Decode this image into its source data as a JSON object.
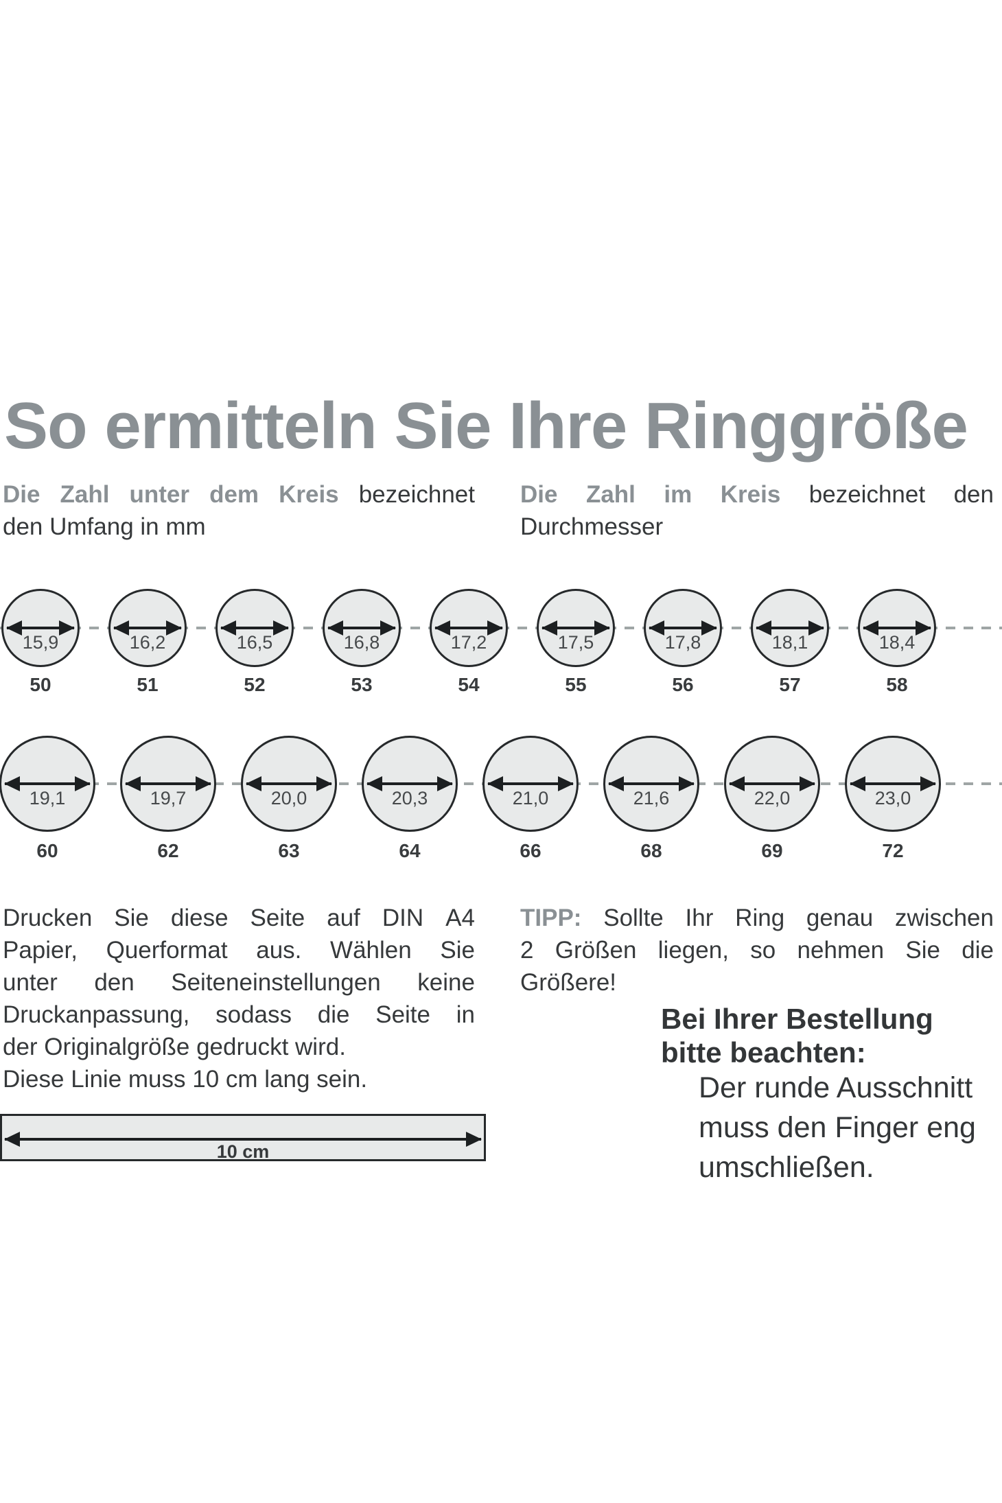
{
  "title": "So ermitteln Sie Ihre Ringgröße",
  "subtitle_left": {
    "line1": [
      {
        "t": "Die",
        "gray": true
      },
      {
        "t": "Zahl",
        "gray": true
      },
      {
        "t": "unter",
        "gray": true
      },
      {
        "t": "dem",
        "gray": true
      },
      {
        "t": "Kreis",
        "gray": true
      },
      {
        "t": "bezeichnet"
      }
    ],
    "line2": "den Umfang in mm"
  },
  "subtitle_right": {
    "line1": [
      {
        "t": "Die",
        "gray": true
      },
      {
        "t": "Zahl",
        "gray": true
      },
      {
        "t": "im",
        "gray": true
      },
      {
        "t": "Kreis",
        "gray": true
      },
      {
        "t": "bezeichnet"
      },
      {
        "t": "den"
      }
    ],
    "line2": "Durchmesser"
  },
  "row1": {
    "circles": [
      {
        "diameter_mm": "15,9",
        "size": "50"
      },
      {
        "diameter_mm": "16,2",
        "size": "51"
      },
      {
        "diameter_mm": "16,5",
        "size": "52"
      },
      {
        "diameter_mm": "16,8",
        "size": "53"
      },
      {
        "diameter_mm": "17,2",
        "size": "54"
      },
      {
        "diameter_mm": "17,5",
        "size": "55"
      },
      {
        "diameter_mm": "17,8",
        "size": "56"
      },
      {
        "diameter_mm": "18,1",
        "size": "57"
      },
      {
        "diameter_mm": "18,4",
        "size": "58"
      }
    ]
  },
  "row2": {
    "circles": [
      {
        "diameter_mm": "19,1",
        "size": "60"
      },
      {
        "diameter_mm": "19,7",
        "size": "62"
      },
      {
        "diameter_mm": "20,0",
        "size": "63"
      },
      {
        "diameter_mm": "20,3",
        "size": "64"
      },
      {
        "diameter_mm": "21,0",
        "size": "66"
      },
      {
        "diameter_mm": "21,6",
        "size": "68"
      },
      {
        "diameter_mm": "22,0",
        "size": "69"
      },
      {
        "diameter_mm": "23,0",
        "size": "72"
      }
    ]
  },
  "print_para": {
    "lines": [
      {
        "justify": true,
        "words": [
          {
            "t": "Drucken"
          },
          {
            "t": "Sie"
          },
          {
            "t": "diese"
          },
          {
            "t": "Seite"
          },
          {
            "t": "auf"
          },
          {
            "t": "DIN"
          },
          {
            "t": "A4"
          }
        ]
      },
      {
        "justify": true,
        "words": [
          {
            "t": "Papier,"
          },
          {
            "t": "Querformat"
          },
          {
            "t": "aus."
          },
          {
            "t": "Wählen"
          },
          {
            "t": "Sie"
          }
        ]
      },
      {
        "justify": true,
        "words": [
          {
            "t": "unter"
          },
          {
            "t": "den"
          },
          {
            "t": "Seiteneinstellungen"
          },
          {
            "t": "keine"
          }
        ]
      },
      {
        "justify": true,
        "words": [
          {
            "t": "Druckanpassung,"
          },
          {
            "t": "sodass"
          },
          {
            "t": "die"
          },
          {
            "t": "Seite"
          },
          {
            "t": "in"
          }
        ]
      },
      {
        "justify": false,
        "text": "der Originalgröße gedruckt wird."
      },
      {
        "justify": false,
        "text": "Diese Linie muss 10 cm lang sein."
      }
    ]
  },
  "tip_para": {
    "lines": [
      {
        "justify": true,
        "words": [
          {
            "t": "TIPP:",
            "gray": true
          },
          {
            "t": "Sollte"
          },
          {
            "t": "Ihr"
          },
          {
            "t": "Ring"
          },
          {
            "t": "genau"
          },
          {
            "t": "zwischen"
          }
        ]
      },
      {
        "justify": true,
        "words": [
          {
            "t": "2"
          },
          {
            "t": "Größen"
          },
          {
            "t": "liegen,"
          },
          {
            "t": "so"
          },
          {
            "t": "nehmen"
          },
          {
            "t": "Sie"
          },
          {
            "t": "die"
          }
        ]
      },
      {
        "justify": false,
        "text": "Größere!"
      }
    ]
  },
  "order_note": {
    "heading_lines": [
      "Bei Ihrer Bestellung",
      "bitte beachten:"
    ],
    "body_lines": [
      "Der runde Ausschnitt",
      "muss den Finger eng",
      "umschließen."
    ]
  },
  "ruler": {
    "label": "10 cm"
  },
  "colors": {
    "accent_gray": "#8A9094",
    "body_text": "#36393B",
    "circle_fill": "#E8EAEA",
    "circle_border": "#26292B",
    "arrow": "#1C1F21",
    "dash": "#9FA5A5"
  }
}
